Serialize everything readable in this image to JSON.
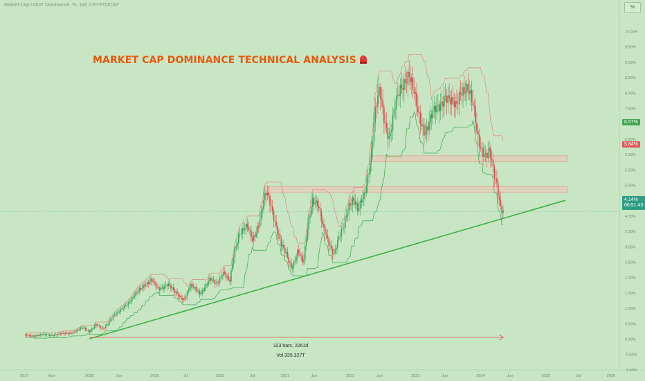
{
  "header": {
    "ticker": "Market Cap USDT Dominance, %, 1W, CRYPTOCAP",
    "percent_toggle": "%"
  },
  "headline": {
    "text": "MARKET CAP DOMINANCE TECHNICAL ANALYSIS"
  },
  "measure": {
    "bars": "323 bars, 2261d",
    "volume": "Vol 335.327T"
  },
  "price_tags": {
    "upper": "6.57%",
    "resistance": "5.84%",
    "last": "4.14%",
    "countdown": "06:51:43"
  },
  "colors": {
    "background": "#c8e6c4",
    "up": "#3aa85a",
    "down": "#e0474c",
    "trendline": "#3cb043",
    "headline": "#e8590c"
  },
  "chart_data": {
    "type": "candlestick",
    "y_unit": "%",
    "ylim": [
      -1.0,
      10.0
    ],
    "y_ticks": [
      "10.00%",
      "9.50%",
      "9.00%",
      "8.50%",
      "8.00%",
      "7.50%",
      "7.00%",
      "6.50%",
      "6.00%",
      "5.50%",
      "5.00%",
      "4.50%",
      "4.00%",
      "3.50%",
      "3.00%",
      "2.50%",
      "2.00%",
      "1.50%",
      "1.00%",
      "0.50%",
      "0.00%",
      "-0.50%",
      "-1.00%"
    ],
    "x_ticks": [
      "2017",
      "Mar",
      "2018",
      "Jun",
      "2019",
      "Jul",
      "2020",
      "Jul",
      "2021",
      "Jun",
      "2022",
      "Jun",
      "2023",
      "Jun",
      "2024",
      "Jun",
      "2025",
      "Jul",
      "2026"
    ],
    "series": [
      {
        "name": "",
        "points": [
          [
            2017.0,
            0.1
          ],
          [
            2017.3,
            0.12
          ],
          [
            2017.6,
            0.15
          ],
          [
            2017.8,
            0.25
          ],
          [
            2017.9,
            0.35
          ],
          [
            2018.0,
            0.25
          ],
          [
            2018.1,
            0.45
          ],
          [
            2018.2,
            0.3
          ],
          [
            2018.35,
            0.7
          ],
          [
            2018.45,
            0.85
          ],
          [
            2018.55,
            1.1
          ],
          [
            2018.7,
            1.4
          ],
          [
            2018.85,
            1.8
          ],
          [
            2018.95,
            1.9
          ],
          [
            2019.05,
            1.6
          ],
          [
            2019.2,
            1.8
          ],
          [
            2019.3,
            1.5
          ],
          [
            2019.45,
            1.3
          ],
          [
            2019.55,
            1.7
          ],
          [
            2019.7,
            1.5
          ],
          [
            2019.85,
            1.9
          ],
          [
            2019.95,
            1.8
          ],
          [
            2020.05,
            2.2
          ],
          [
            2020.15,
            1.8
          ],
          [
            2020.22,
            2.8
          ],
          [
            2020.3,
            3.5
          ],
          [
            2020.42,
            3.6
          ],
          [
            2020.5,
            3.2
          ],
          [
            2020.6,
            3.8
          ],
          [
            2020.68,
            4.5
          ],
          [
            2020.72,
            4.7
          ],
          [
            2020.8,
            4.2
          ],
          [
            2020.88,
            3.6
          ],
          [
            2020.95,
            3.0
          ],
          [
            2021.02,
            2.7
          ],
          [
            2021.1,
            2.3
          ],
          [
            2021.2,
            2.9
          ],
          [
            2021.28,
            2.4
          ],
          [
            2021.36,
            3.8
          ],
          [
            2021.42,
            4.6
          ],
          [
            2021.5,
            4.4
          ],
          [
            2021.58,
            3.6
          ],
          [
            2021.66,
            3.2
          ],
          [
            2021.75,
            2.8
          ],
          [
            2021.82,
            3.2
          ],
          [
            2021.9,
            3.6
          ],
          [
            2021.98,
            4.4
          ],
          [
            2022.05,
            4.6
          ],
          [
            2022.12,
            4.1
          ],
          [
            2022.22,
            4.7
          ],
          [
            2022.32,
            6.0
          ],
          [
            2022.38,
            7.3
          ],
          [
            2022.45,
            8.0
          ],
          [
            2022.52,
            7.2
          ],
          [
            2022.6,
            6.6
          ],
          [
            2022.68,
            7.4
          ],
          [
            2022.76,
            8.0
          ],
          [
            2022.84,
            8.5
          ],
          [
            2022.9,
            8.7
          ],
          [
            2022.98,
            7.9
          ],
          [
            2023.05,
            7.2
          ],
          [
            2023.15,
            6.8
          ],
          [
            2023.25,
            7.2
          ],
          [
            2023.35,
            7.5
          ],
          [
            2023.45,
            8.0
          ],
          [
            2023.55,
            7.6
          ],
          [
            2023.62,
            7.5
          ],
          [
            2023.7,
            8.2
          ],
          [
            2023.8,
            8.1
          ],
          [
            2023.9,
            7.4
          ],
          [
            2023.96,
            6.6
          ],
          [
            2024.02,
            6.2
          ],
          [
            2024.08,
            5.9
          ],
          [
            2024.14,
            6.0
          ],
          [
            2024.2,
            5.4
          ],
          [
            2024.25,
            5.1
          ],
          [
            2024.3,
            4.4
          ],
          [
            2024.35,
            4.1
          ]
        ]
      }
    ],
    "trendline": [
      [
        2018.0,
        0.0
      ],
      [
        2025.3,
        4.5
      ]
    ],
    "resistance_zones": [
      [
        5.75,
        5.95
      ],
      [
        4.75,
        4.95
      ]
    ],
    "measure_range": [
      2018.0,
      2024.35
    ],
    "last_value": 4.14
  }
}
